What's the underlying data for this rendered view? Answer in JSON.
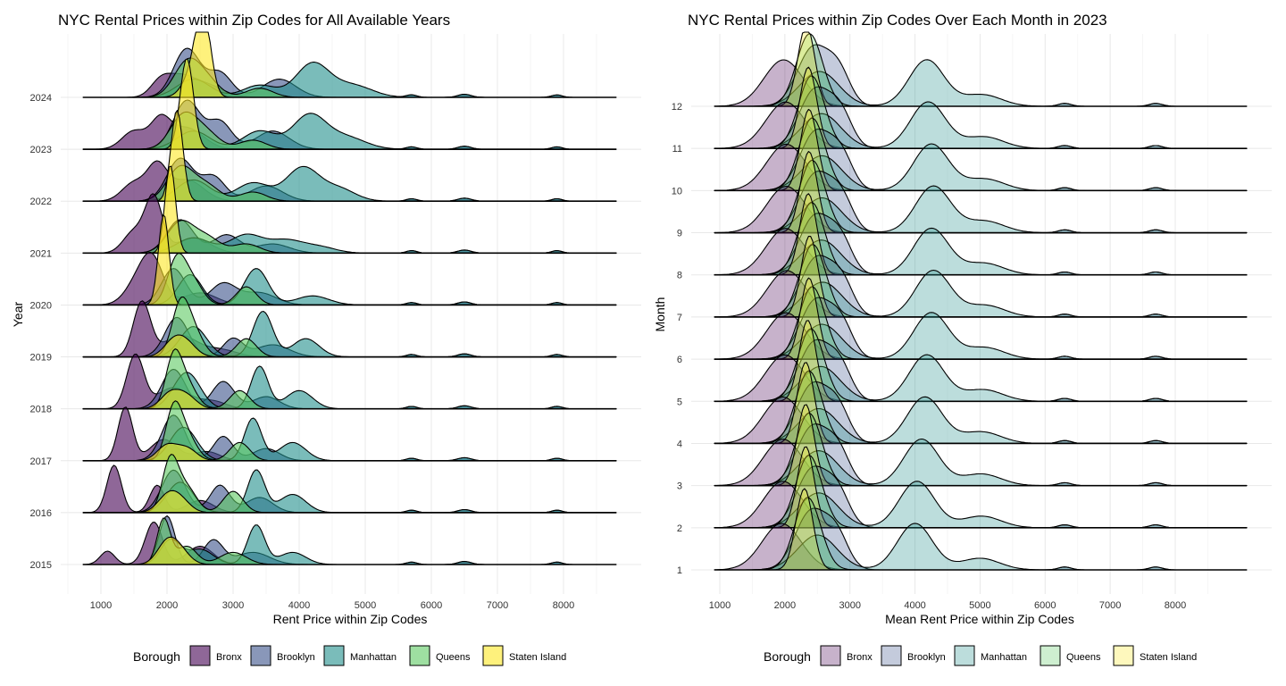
{
  "chart_data": [
    {
      "type": "ridgeline",
      "title": "NYC Rental Prices within Zip Codes for All Available Years",
      "xlabel": "Rent Price within Zip Codes",
      "ylabel": "Year",
      "xlim": [
        500,
        9000
      ],
      "x_ticks": [
        1000,
        2000,
        3000,
        4000,
        5000,
        6000,
        7000,
        8000
      ],
      "x_tick_labels": [
        "1000",
        "2000",
        "3000",
        "4000",
        "5000",
        "6000",
        "7000",
        "8000"
      ],
      "categories": [
        "2015",
        "2016",
        "2017",
        "2018",
        "2019",
        "2020",
        "2021",
        "2022",
        "2023",
        "2024"
      ],
      "fill_opacity": 0.6,
      "grid": true,
      "legend_position": "bottom",
      "series": [
        {
          "name": "Bronx",
          "color": "#440154",
          "modes": [
            [
              [
                1100,
                0.22,
                110
              ],
              [
                1800,
                0.7,
                130
              ],
              [
                2500,
                0.3,
                200
              ]
            ],
            [
              [
                1200,
                0.78,
                110
              ],
              [
                1850,
                0.45,
                110
              ],
              [
                2500,
                0.2,
                200
              ]
            ],
            [
              [
                1370,
                0.88,
                110
              ],
              [
                1950,
                0.35,
                200
              ],
              [
                2600,
                0.15,
                200
              ]
            ],
            [
              [
                1520,
                0.88,
                130
              ],
              [
                2100,
                0.35,
                250
              ],
              [
                2700,
                0.12,
                200
              ]
            ],
            [
              [
                1620,
                0.9,
                130
              ],
              [
                2200,
                0.35,
                250
              ],
              [
                2800,
                0.12,
                250
              ]
            ],
            [
              [
                1600,
                0.45,
                200
              ],
              [
                1800,
                0.55,
                160
              ],
              [
                2500,
                0.2,
                250
              ]
            ],
            [
              [
                1500,
                0.35,
                160
              ],
              [
                1800,
                0.9,
                130
              ],
              [
                2400,
                0.25,
                250
              ]
            ],
            [
              [
                1500,
                0.3,
                180
              ],
              [
                1850,
                0.55,
                150
              ],
              [
                2300,
                0.35,
                250
              ]
            ],
            [
              [
                1500,
                0.3,
                180
              ],
              [
                1900,
                0.45,
                150
              ],
              [
                2300,
                0.35,
                250
              ]
            ],
            [
              [
                1900,
                0.25,
                150
              ],
              [
                2200,
                0.3,
                200
              ],
              [
                2600,
                0.2,
                250
              ]
            ]
          ]
        },
        {
          "name": "Brooklyn",
          "color": "#3b528b",
          "modes": [
            [
              [
                2000,
                0.8,
                120
              ],
              [
                2700,
                0.4,
                150
              ],
              [
                3300,
                0.2,
                250
              ]
            ],
            [
              [
                2100,
                0.7,
                180
              ],
              [
                2800,
                0.45,
                150
              ],
              [
                3400,
                0.25,
                200
              ]
            ],
            [
              [
                2100,
                0.75,
                180
              ],
              [
                2850,
                0.4,
                150
              ],
              [
                3500,
                0.2,
                200
              ]
            ],
            [
              [
                2100,
                0.65,
                180
              ],
              [
                2850,
                0.45,
                170
              ],
              [
                3500,
                0.2,
                200
              ]
            ],
            [
              [
                2150,
                0.65,
                180
              ],
              [
                3000,
                0.3,
                150
              ],
              [
                3600,
                0.2,
                250
              ]
            ],
            [
              [
                2100,
                0.6,
                180
              ],
              [
                2850,
                0.35,
                200
              ],
              [
                3400,
                0.2,
                250
              ]
            ],
            [
              [
                2200,
                0.55,
                200
              ],
              [
                2900,
                0.3,
                200
              ],
              [
                3600,
                0.15,
                250
              ]
            ],
            [
              [
                2200,
                0.7,
                200
              ],
              [
                2700,
                0.4,
                180
              ],
              [
                3500,
                0.25,
                250
              ]
            ],
            [
              [
                2300,
                0.8,
                200
              ],
              [
                2800,
                0.45,
                180
              ],
              [
                3600,
                0.3,
                250
              ]
            ],
            [
              [
                2300,
                0.8,
                200
              ],
              [
                2800,
                0.4,
                180
              ],
              [
                3700,
                0.3,
                250
              ]
            ]
          ]
        },
        {
          "name": "Manhattan",
          "color": "#21908c",
          "modes": [
            [
              [
                2050,
                0.4,
                150
              ],
              [
                2500,
                0.25,
                200
              ],
              [
                3350,
                0.65,
                130
              ],
              [
                3900,
                0.2,
                200
              ]
            ],
            [
              [
                2200,
                0.5,
                200
              ],
              [
                3350,
                0.7,
                130
              ],
              [
                3900,
                0.3,
                200
              ]
            ],
            [
              [
                2250,
                0.55,
                200
              ],
              [
                3300,
                0.7,
                130
              ],
              [
                3900,
                0.3,
                200
              ]
            ],
            [
              [
                2300,
                0.6,
                200
              ],
              [
                3400,
                0.7,
                130
              ],
              [
                4000,
                0.3,
                200
              ]
            ],
            [
              [
                2400,
                0.5,
                200
              ],
              [
                3450,
                0.75,
                150
              ],
              [
                4100,
                0.3,
                200
              ]
            ],
            [
              [
                2350,
                0.5,
                180
              ],
              [
                3350,
                0.6,
                180
              ],
              [
                4200,
                0.15,
                250
              ]
            ],
            [
              [
                2400,
                0.25,
                250
              ],
              [
                3200,
                0.3,
                250
              ],
              [
                3800,
                0.2,
                250
              ],
              [
                4300,
                0.1,
                250
              ]
            ],
            [
              [
                2400,
                0.35,
                250
              ],
              [
                3300,
                0.3,
                250
              ],
              [
                4050,
                0.55,
                250
              ],
              [
                4600,
                0.2,
                250
              ]
            ],
            [
              [
                2400,
                0.3,
                250
              ],
              [
                3400,
                0.3,
                250
              ],
              [
                4150,
                0.55,
                250
              ],
              [
                4700,
                0.2,
                300
              ]
            ],
            [
              [
                2400,
                0.3,
                250
              ],
              [
                3400,
                0.2,
                250
              ],
              [
                4200,
                0.55,
                250
              ],
              [
                4800,
                0.2,
                300
              ]
            ]
          ]
        },
        {
          "name": "Queens",
          "color": "#5ec962",
          "modes": [
            [
              [
                1950,
                0.75,
                100
              ],
              [
                2300,
                0.3,
                150
              ],
              [
                3000,
                0.2,
                200
              ]
            ],
            [
              [
                2050,
                0.85,
                120
              ],
              [
                2300,
                0.4,
                150
              ],
              [
                3000,
                0.35,
                150
              ]
            ],
            [
              [
                2100,
                0.8,
                120
              ],
              [
                2300,
                0.4,
                150
              ],
              [
                3100,
                0.3,
                150
              ]
            ],
            [
              [
                2100,
                0.8,
                120
              ],
              [
                2300,
                0.4,
                150
              ],
              [
                3100,
                0.3,
                150
              ]
            ],
            [
              [
                2200,
                0.8,
                130
              ],
              [
                2400,
                0.4,
                150
              ],
              [
                3200,
                0.3,
                150
              ]
            ],
            [
              [
                2150,
                0.75,
                140
              ],
              [
                2400,
                0.35,
                150
              ],
              [
                3200,
                0.3,
                150
              ]
            ],
            [
              [
                2200,
                0.5,
                200
              ],
              [
                2600,
                0.25,
                200
              ],
              [
                3200,
                0.15,
                200
              ]
            ],
            [
              [
                2200,
                0.55,
                200
              ],
              [
                2600,
                0.25,
                200
              ],
              [
                3300,
                0.15,
                200
              ]
            ],
            [
              [
                2250,
                0.55,
                200
              ],
              [
                2600,
                0.25,
                200
              ],
              [
                3300,
                0.15,
                200
              ]
            ],
            [
              [
                2300,
                0.55,
                200
              ],
              [
                2600,
                0.25,
                200
              ],
              [
                3400,
                0.15,
                200
              ]
            ]
          ]
        },
        {
          "name": "Staten Island",
          "color": "#fde725",
          "modes": [
            [
              [
                2000,
                0.35,
                150
              ],
              [
                2200,
                0.2,
                150
              ]
            ],
            [
              [
                2000,
                0.25,
                150
              ],
              [
                2200,
                0.2,
                150
              ]
            ],
            [
              [
                2000,
                0.25,
                150
              ],
              [
                2300,
                0.2,
                150
              ]
            ],
            [
              [
                2050,
                0.25,
                150
              ],
              [
                2300,
                0.2,
                150
              ]
            ],
            [
              [
                2100,
                0.25,
                150
              ],
              [
                2300,
                0.2,
                150
              ]
            ],
            [
              [
                1950,
                1.5,
                80
              ]
            ],
            [
              [
                2050,
                1.45,
                80
              ]
            ],
            [
              [
                2150,
                1.5,
                90
              ]
            ],
            [
              [
                2300,
                1.5,
                100
              ]
            ],
            [
              [
                2550,
                1.25,
                110
              ],
              [
                2400,
                0.4,
                150
              ]
            ]
          ]
        }
      ]
    },
    {
      "type": "ridgeline",
      "title": "NYC Rental Prices within Zip Codes Over Each Month in 2023",
      "xlabel": "Mean Rent Price within Zip Codes",
      "ylabel": "Month",
      "xlim": [
        700,
        9000
      ],
      "x_ticks": [
        1000,
        2000,
        3000,
        4000,
        5000,
        6000,
        7000,
        8000
      ],
      "x_tick_labels": [
        "1000",
        "2000",
        "3000",
        "4000",
        "5000",
        "6000",
        "7000",
        "8000"
      ],
      "categories": [
        "1",
        "2",
        "3",
        "4",
        "5",
        "6",
        "7",
        "8",
        "9",
        "10",
        "11",
        "12"
      ],
      "fill_opacity": 0.3,
      "grid": true,
      "legend_position": "bottom",
      "series": [
        {
          "name": "Bronx",
          "color": "#440154",
          "modes": [
            [
              [
                1950,
                0.8,
                300
              ]
            ]
          ]
        },
        {
          "name": "Brooklyn",
          "color": "#3b528b",
          "modes": [
            [
              [
                2400,
                1.0,
                240
              ],
              [
                2800,
                0.55,
                180
              ]
            ]
          ]
        },
        {
          "name": "Manhattan",
          "color": "#21908c",
          "modes": [
            [
              [
                2500,
                0.6,
                300
              ],
              [
                4100,
                0.8,
                270
              ],
              [
                5000,
                0.2,
                300
              ]
            ]
          ]
        },
        {
          "name": "Queens",
          "color": "#5ec962",
          "modes": [
            [
              [
                2350,
                1.25,
                200
              ]
            ]
          ]
        },
        {
          "name": "Staten Island",
          "color": "#fde725",
          "modes": [
            [
              [
                2300,
                1.4,
                130
              ]
            ]
          ]
        }
      ],
      "month_shift": [
        0,
        20,
        20,
        20,
        50,
        70,
        80,
        60,
        70,
        70,
        60,
        30
      ],
      "manhattan_peak": [
        4000,
        4030,
        4100,
        4150,
        4180,
        4250,
        4280,
        4250,
        4280,
        4250,
        4200,
        4180
      ]
    }
  ],
  "legend": {
    "title": "Borough",
    "items": [
      "Bronx",
      "Brooklyn",
      "Manhattan",
      "Queens",
      "Staten Island"
    ]
  }
}
